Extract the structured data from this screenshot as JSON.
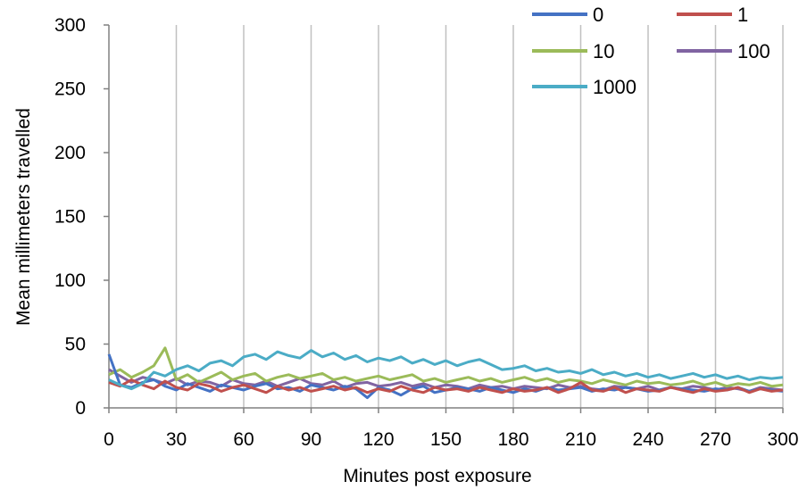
{
  "chart_data": {
    "type": "line",
    "title": "",
    "xlabel": "Minutes post exposure",
    "ylabel": "Mean millimeters travelled",
    "xlim": [
      0,
      300
    ],
    "ylim": [
      0,
      300
    ],
    "x_ticks": [
      0,
      30,
      60,
      90,
      120,
      150,
      180,
      210,
      240,
      270,
      300
    ],
    "y_ticks": [
      0,
      50,
      100,
      150,
      200,
      250,
      300
    ],
    "grid": "vertical",
    "legend_position": "top-right",
    "x": [
      0,
      5,
      10,
      15,
      20,
      25,
      30,
      35,
      40,
      45,
      50,
      55,
      60,
      65,
      70,
      75,
      80,
      85,
      90,
      95,
      100,
      105,
      110,
      115,
      120,
      125,
      130,
      135,
      140,
      145,
      150,
      155,
      160,
      165,
      170,
      175,
      180,
      185,
      190,
      195,
      200,
      205,
      210,
      215,
      220,
      225,
      230,
      235,
      240,
      245,
      250,
      255,
      260,
      265,
      270,
      275,
      280,
      285,
      290,
      295,
      300
    ],
    "series": [
      {
        "name": "0",
        "color": "#4472C4",
        "values": [
          42,
          18,
          16,
          20,
          22,
          17,
          14,
          19,
          16,
          13,
          18,
          16,
          14,
          17,
          19,
          15,
          16,
          13,
          18,
          16,
          14,
          17,
          15,
          8,
          16,
          14,
          10,
          15,
          17,
          12,
          14,
          16,
          15,
          13,
          16,
          14,
          12,
          15,
          13,
          16,
          14,
          15,
          16,
          13,
          15,
          14,
          16,
          15,
          13,
          14,
          16,
          15,
          14,
          13,
          15,
          14,
          16,
          13,
          15,
          14,
          13
        ]
      },
      {
        "name": "1",
        "color": "#C0504D",
        "values": [
          20,
          17,
          22,
          18,
          15,
          21,
          16,
          14,
          19,
          17,
          13,
          16,
          18,
          15,
          12,
          17,
          14,
          16,
          13,
          15,
          17,
          14,
          16,
          12,
          15,
          13,
          17,
          14,
          12,
          16,
          14,
          15,
          13,
          16,
          14,
          12,
          15,
          13,
          14,
          16,
          12,
          15,
          20,
          14,
          13,
          16,
          12,
          15,
          14,
          13,
          16,
          14,
          12,
          15,
          13,
          14,
          16,
          12,
          15,
          13,
          14
        ]
      },
      {
        "name": "10",
        "color": "#9BBB59",
        "values": [
          26,
          30,
          24,
          28,
          33,
          47,
          22,
          26,
          20,
          24,
          28,
          22,
          25,
          27,
          21,
          24,
          26,
          23,
          25,
          27,
          22,
          24,
          21,
          23,
          25,
          22,
          24,
          26,
          21,
          23,
          20,
          22,
          24,
          21,
          23,
          20,
          22,
          24,
          21,
          23,
          20,
          22,
          21,
          19,
          22,
          20,
          18,
          21,
          19,
          20,
          18,
          19,
          21,
          18,
          20,
          17,
          19,
          18,
          20,
          17,
          18
        ]
      },
      {
        "name": "100",
        "color": "#8064A2",
        "values": [
          30,
          25,
          20,
          24,
          22,
          19,
          23,
          18,
          21,
          20,
          17,
          22,
          19,
          18,
          21,
          17,
          20,
          23,
          19,
          18,
          21,
          16,
          19,
          20,
          17,
          18,
          20,
          17,
          19,
          16,
          18,
          17,
          15,
          18,
          16,
          17,
          15,
          17,
          16,
          15,
          18,
          16,
          17,
          15,
          14,
          17,
          16,
          15,
          17,
          14,
          16,
          15,
          17,
          16,
          14,
          16,
          15,
          13,
          16,
          15,
          14
        ]
      },
      {
        "name": "1000",
        "color": "#4BACC6",
        "values": [
          22,
          18,
          15,
          19,
          28,
          25,
          30,
          33,
          29,
          35,
          37,
          33,
          40,
          42,
          38,
          44,
          41,
          39,
          45,
          40,
          43,
          38,
          41,
          36,
          39,
          37,
          40,
          35,
          38,
          34,
          37,
          33,
          36,
          38,
          34,
          30,
          31,
          33,
          29,
          31,
          28,
          29,
          27,
          30,
          26,
          28,
          25,
          27,
          24,
          26,
          23,
          25,
          27,
          24,
          26,
          23,
          25,
          22,
          24,
          23,
          24
        ]
      }
    ]
  }
}
